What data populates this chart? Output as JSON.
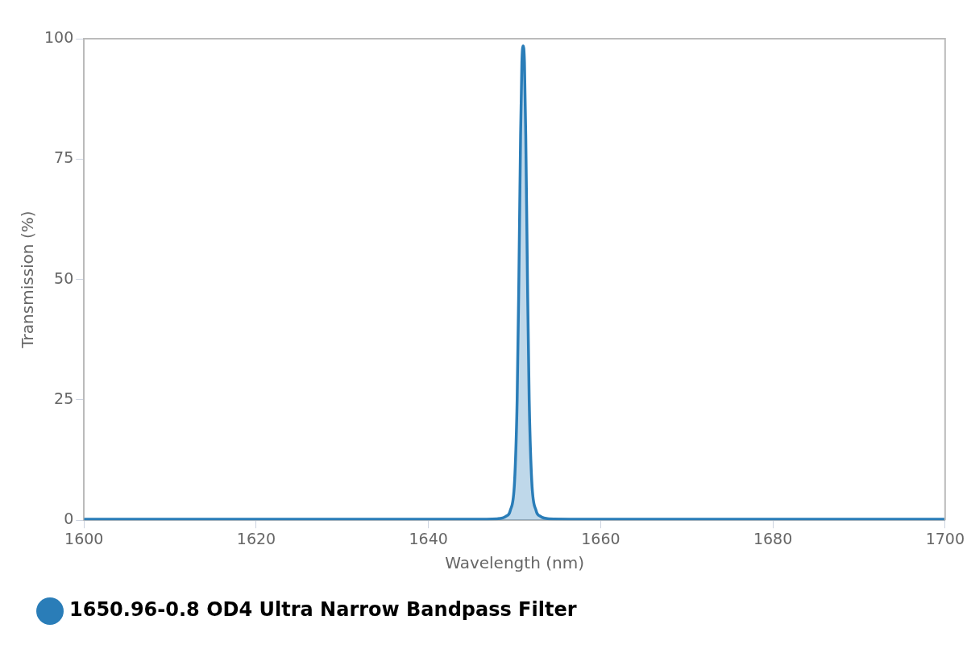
{
  "chart_data": {
    "type": "area",
    "xlabel": "Wavelength (nm)",
    "ylabel": "Transmission (%)",
    "xlim": [
      1600,
      1700
    ],
    "xticks": [
      1600,
      1620,
      1640,
      1660,
      1680,
      1700
    ],
    "ylim": [
      0,
      100
    ],
    "yticks": [
      0,
      25,
      50,
      75,
      100
    ],
    "grid": false,
    "legend": "bottom left",
    "marker": "none",
    "series": [
      {
        "name": "1650.96-0.8 OD4 Ultra Narrow Bandpass Filter",
        "color": "#2a7db8",
        "x": [
          1600,
          1645,
          1648,
          1649,
          1649.5,
          1650,
          1650.3,
          1650.5,
          1650.7,
          1650.85,
          1651,
          1651.15,
          1651.3,
          1651.5,
          1651.7,
          1652,
          1652.5,
          1653,
          1654,
          1660,
          1700
        ],
        "values": [
          0.2,
          0.2,
          0.3,
          0.8,
          2,
          8,
          25,
          50,
          80,
          95,
          98.5,
          95,
          80,
          50,
          25,
          8,
          2,
          0.8,
          0.3,
          0.2,
          0.2
        ]
      }
    ]
  }
}
